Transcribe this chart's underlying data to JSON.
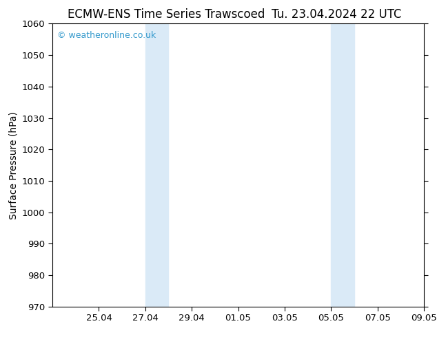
{
  "title_left": "ECMW-ENS Time Series Trawscoed",
  "title_right": "Tu. 23.04.2024 22 UTC",
  "ylabel": "Surface Pressure (hPa)",
  "ylim": [
    970,
    1060
  ],
  "yticks": [
    970,
    980,
    990,
    1000,
    1010,
    1020,
    1030,
    1040,
    1050,
    1060
  ],
  "xlim": [
    0,
    16
  ],
  "xtick_labels": [
    "25.04",
    "27.04",
    "29.04",
    "01.05",
    "03.05",
    "05.05",
    "07.05",
    "09.05"
  ],
  "xtick_positions": [
    2,
    4,
    6,
    8,
    10,
    12,
    14,
    16
  ],
  "shade_regions": [
    {
      "x_start": 4.0,
      "x_end": 5.0
    },
    {
      "x_start": 12.0,
      "x_end": 13.0
    }
  ],
  "shade_color": "#daeaf7",
  "background_color": "#ffffff",
  "plot_bg_color": "#ffffff",
  "watermark_text": "© weatheronline.co.uk",
  "watermark_color": "#3399cc",
  "title_fontsize": 12,
  "label_fontsize": 10,
  "tick_fontsize": 9.5
}
